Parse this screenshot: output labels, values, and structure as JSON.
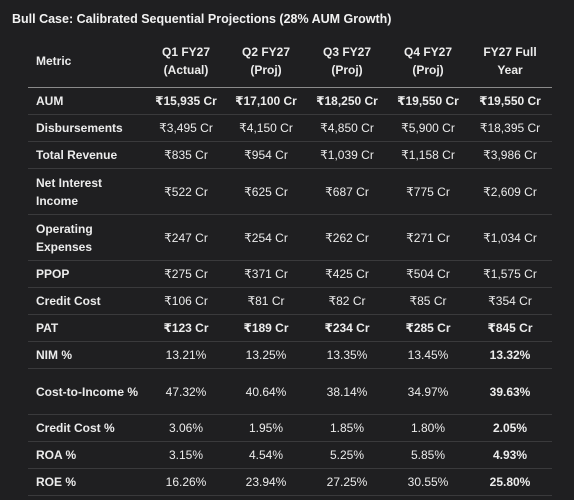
{
  "title": "Bull Case: Calibrated Sequential Projections (28% AUM Growth)",
  "table": {
    "header": [
      "Metric",
      "Q1 FY27 (Actual)",
      "Q2 FY27 (Proj)",
      "Q3 FY27 (Proj)",
      "Q4 FY27 (Proj)",
      "FY27 Full Year"
    ],
    "rows": [
      [
        "AUM",
        "₹15,935 Cr",
        "₹17,100 Cr",
        "₹18,250 Cr",
        "₹19,550 Cr",
        "₹19,550 Cr"
      ],
      [
        "Disbursements",
        "₹3,495 Cr",
        "₹4,150 Cr",
        "₹4,850 Cr",
        "₹5,900 Cr",
        "₹18,395 Cr"
      ],
      [
        "Total Revenue",
        "₹835 Cr",
        "₹954 Cr",
        "₹1,039 Cr",
        "₹1,158 Cr",
        "₹3,986 Cr"
      ],
      [
        "Net Interest Income",
        "₹522 Cr",
        "₹625 Cr",
        "₹687 Cr",
        "₹775 Cr",
        "₹2,609 Cr"
      ],
      [
        "Operating Expenses",
        "₹247 Cr",
        "₹254 Cr",
        "₹262 Cr",
        "₹271 Cr",
        "₹1,034 Cr"
      ],
      [
        "PPOP",
        "₹275 Cr",
        "₹371 Cr",
        "₹425 Cr",
        "₹504 Cr",
        "₹1,575 Cr"
      ],
      [
        "Credit Cost",
        "₹106 Cr",
        "₹81 Cr",
        "₹82 Cr",
        "₹85 Cr",
        "₹354 Cr"
      ],
      [
        "PAT",
        "₹123 Cr",
        "₹189 Cr",
        "₹234 Cr",
        "₹285 Cr",
        "₹845 Cr"
      ],
      [
        "NIM %",
        "13.21%",
        "13.25%",
        "13.35%",
        "13.45%",
        "13.32%"
      ],
      [
        "Cost-to-Income %",
        "47.32%",
        "40.64%",
        "38.14%",
        "34.97%",
        "39.63%"
      ],
      [
        "Credit Cost %",
        "3.06%",
        "1.95%",
        "1.85%",
        "1.80%",
        "2.05%"
      ],
      [
        "ROA %",
        "3.15%",
        "4.54%",
        "5.25%",
        "5.85%",
        "4.93%"
      ],
      [
        "ROE %",
        "16.26%",
        "23.94%",
        "27.25%",
        "30.55%",
        "25.80%"
      ]
    ]
  }
}
